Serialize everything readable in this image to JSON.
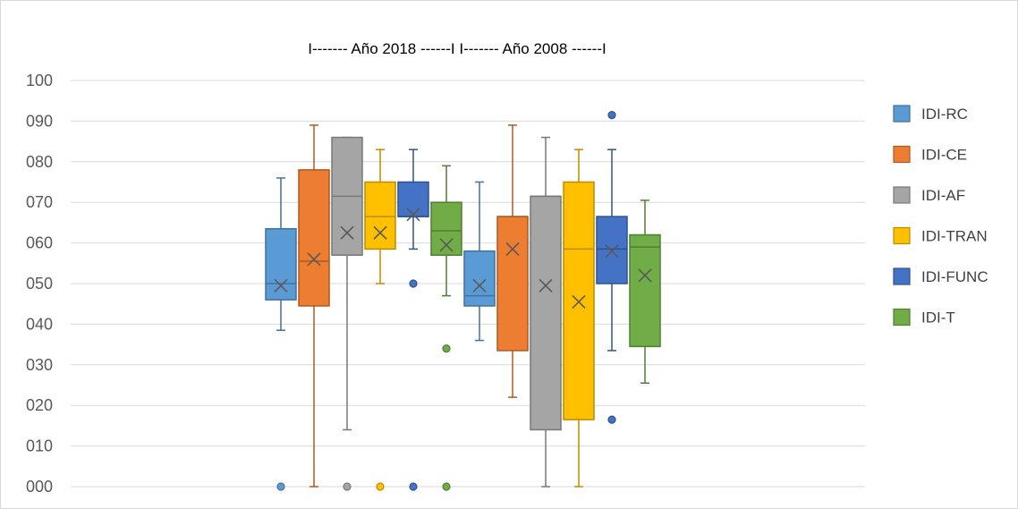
{
  "chart_data": {
    "type": "box",
    "title": "I------- Año 2018 ------I  I------- Año 2008 ------I",
    "xlabel": "",
    "ylabel": "",
    "ylim": [
      0,
      100
    ],
    "y_ticks": [
      "000",
      "010",
      "020",
      "030",
      "040",
      "050",
      "060",
      "070",
      "080",
      "090",
      "100"
    ],
    "grid": true,
    "legend_position": "right",
    "series": [
      {
        "name": "IDI-RC",
        "color": "#5b9bd5",
        "stroke": "#41719c"
      },
      {
        "name": "IDI-CE",
        "color": "#ed7d31",
        "stroke": "#ae5a21"
      },
      {
        "name": "IDI-AF",
        "color": "#a5a5a5",
        "stroke": "#787878"
      },
      {
        "name": "IDI-TRAN",
        "color": "#ffc000",
        "stroke": "#bc8c00"
      },
      {
        "name": "IDI-FUNC",
        "color": "#4472c4",
        "stroke": "#2f528f"
      },
      {
        "name": "IDI-T",
        "color": "#70ad47",
        "stroke": "#507e32"
      }
    ],
    "groups": [
      {
        "name": "Año 2018",
        "boxes": [
          {
            "series": "IDI-RC",
            "min": 38.5,
            "q1": 46,
            "median": 50,
            "q3": 63.5,
            "max": 76,
            "mean": 49.5,
            "outliers": [
              0
            ]
          },
          {
            "series": "IDI-CE",
            "min": 0,
            "q1": 44.5,
            "median": 55.5,
            "q3": 78,
            "max": 89,
            "mean": 56,
            "outliers": []
          },
          {
            "series": "IDI-AF",
            "min": 14,
            "q1": 57,
            "median": 71.5,
            "q3": 86,
            "max": 86,
            "mean": 62.5,
            "outliers": [
              0
            ]
          },
          {
            "series": "IDI-TRAN",
            "min": 50,
            "q1": 58.5,
            "median": 66.5,
            "q3": 75,
            "max": 83,
            "mean": 62.5,
            "outliers": [
              0
            ]
          },
          {
            "series": "IDI-FUNC",
            "min": 58.5,
            "q1": 66.5,
            "median": 66.5,
            "q3": 75,
            "max": 83,
            "mean": 67,
            "outliers": [
              50,
              0
            ]
          },
          {
            "series": "IDI-T",
            "min": 47,
            "q1": 57,
            "median": 63,
            "q3": 70,
            "max": 79,
            "mean": 59.5,
            "outliers": [
              34,
              0
            ]
          }
        ]
      },
      {
        "name": "Año 2008",
        "boxes": [
          {
            "series": "IDI-RC",
            "min": 36,
            "q1": 44.5,
            "median": 47,
            "q3": 58,
            "max": 75,
            "mean": 49.5,
            "outliers": []
          },
          {
            "series": "IDI-CE",
            "min": 22,
            "q1": 33.5,
            "median": 66.5,
            "q3": 66.5,
            "max": 89,
            "mean": 58.5,
            "outliers": []
          },
          {
            "series": "IDI-AF",
            "min": 0,
            "q1": 14,
            "median": 71.5,
            "q3": 71.5,
            "max": 86,
            "mean": 49.5,
            "outliers": []
          },
          {
            "series": "IDI-TRAN",
            "min": 0,
            "q1": 16.5,
            "median": 58.5,
            "q3": 75,
            "max": 83,
            "mean": 45.5,
            "outliers": []
          },
          {
            "series": "IDI-FUNC",
            "min": 33.5,
            "q1": 50,
            "median": 58.5,
            "q3": 66.5,
            "max": 83,
            "mean": 58,
            "outliers": [
              91.5,
              16.5
            ]
          },
          {
            "series": "IDI-T",
            "min": 25.5,
            "q1": 34.5,
            "median": 59,
            "q3": 62,
            "max": 70.5,
            "mean": 52,
            "outliers": []
          }
        ]
      }
    ]
  }
}
